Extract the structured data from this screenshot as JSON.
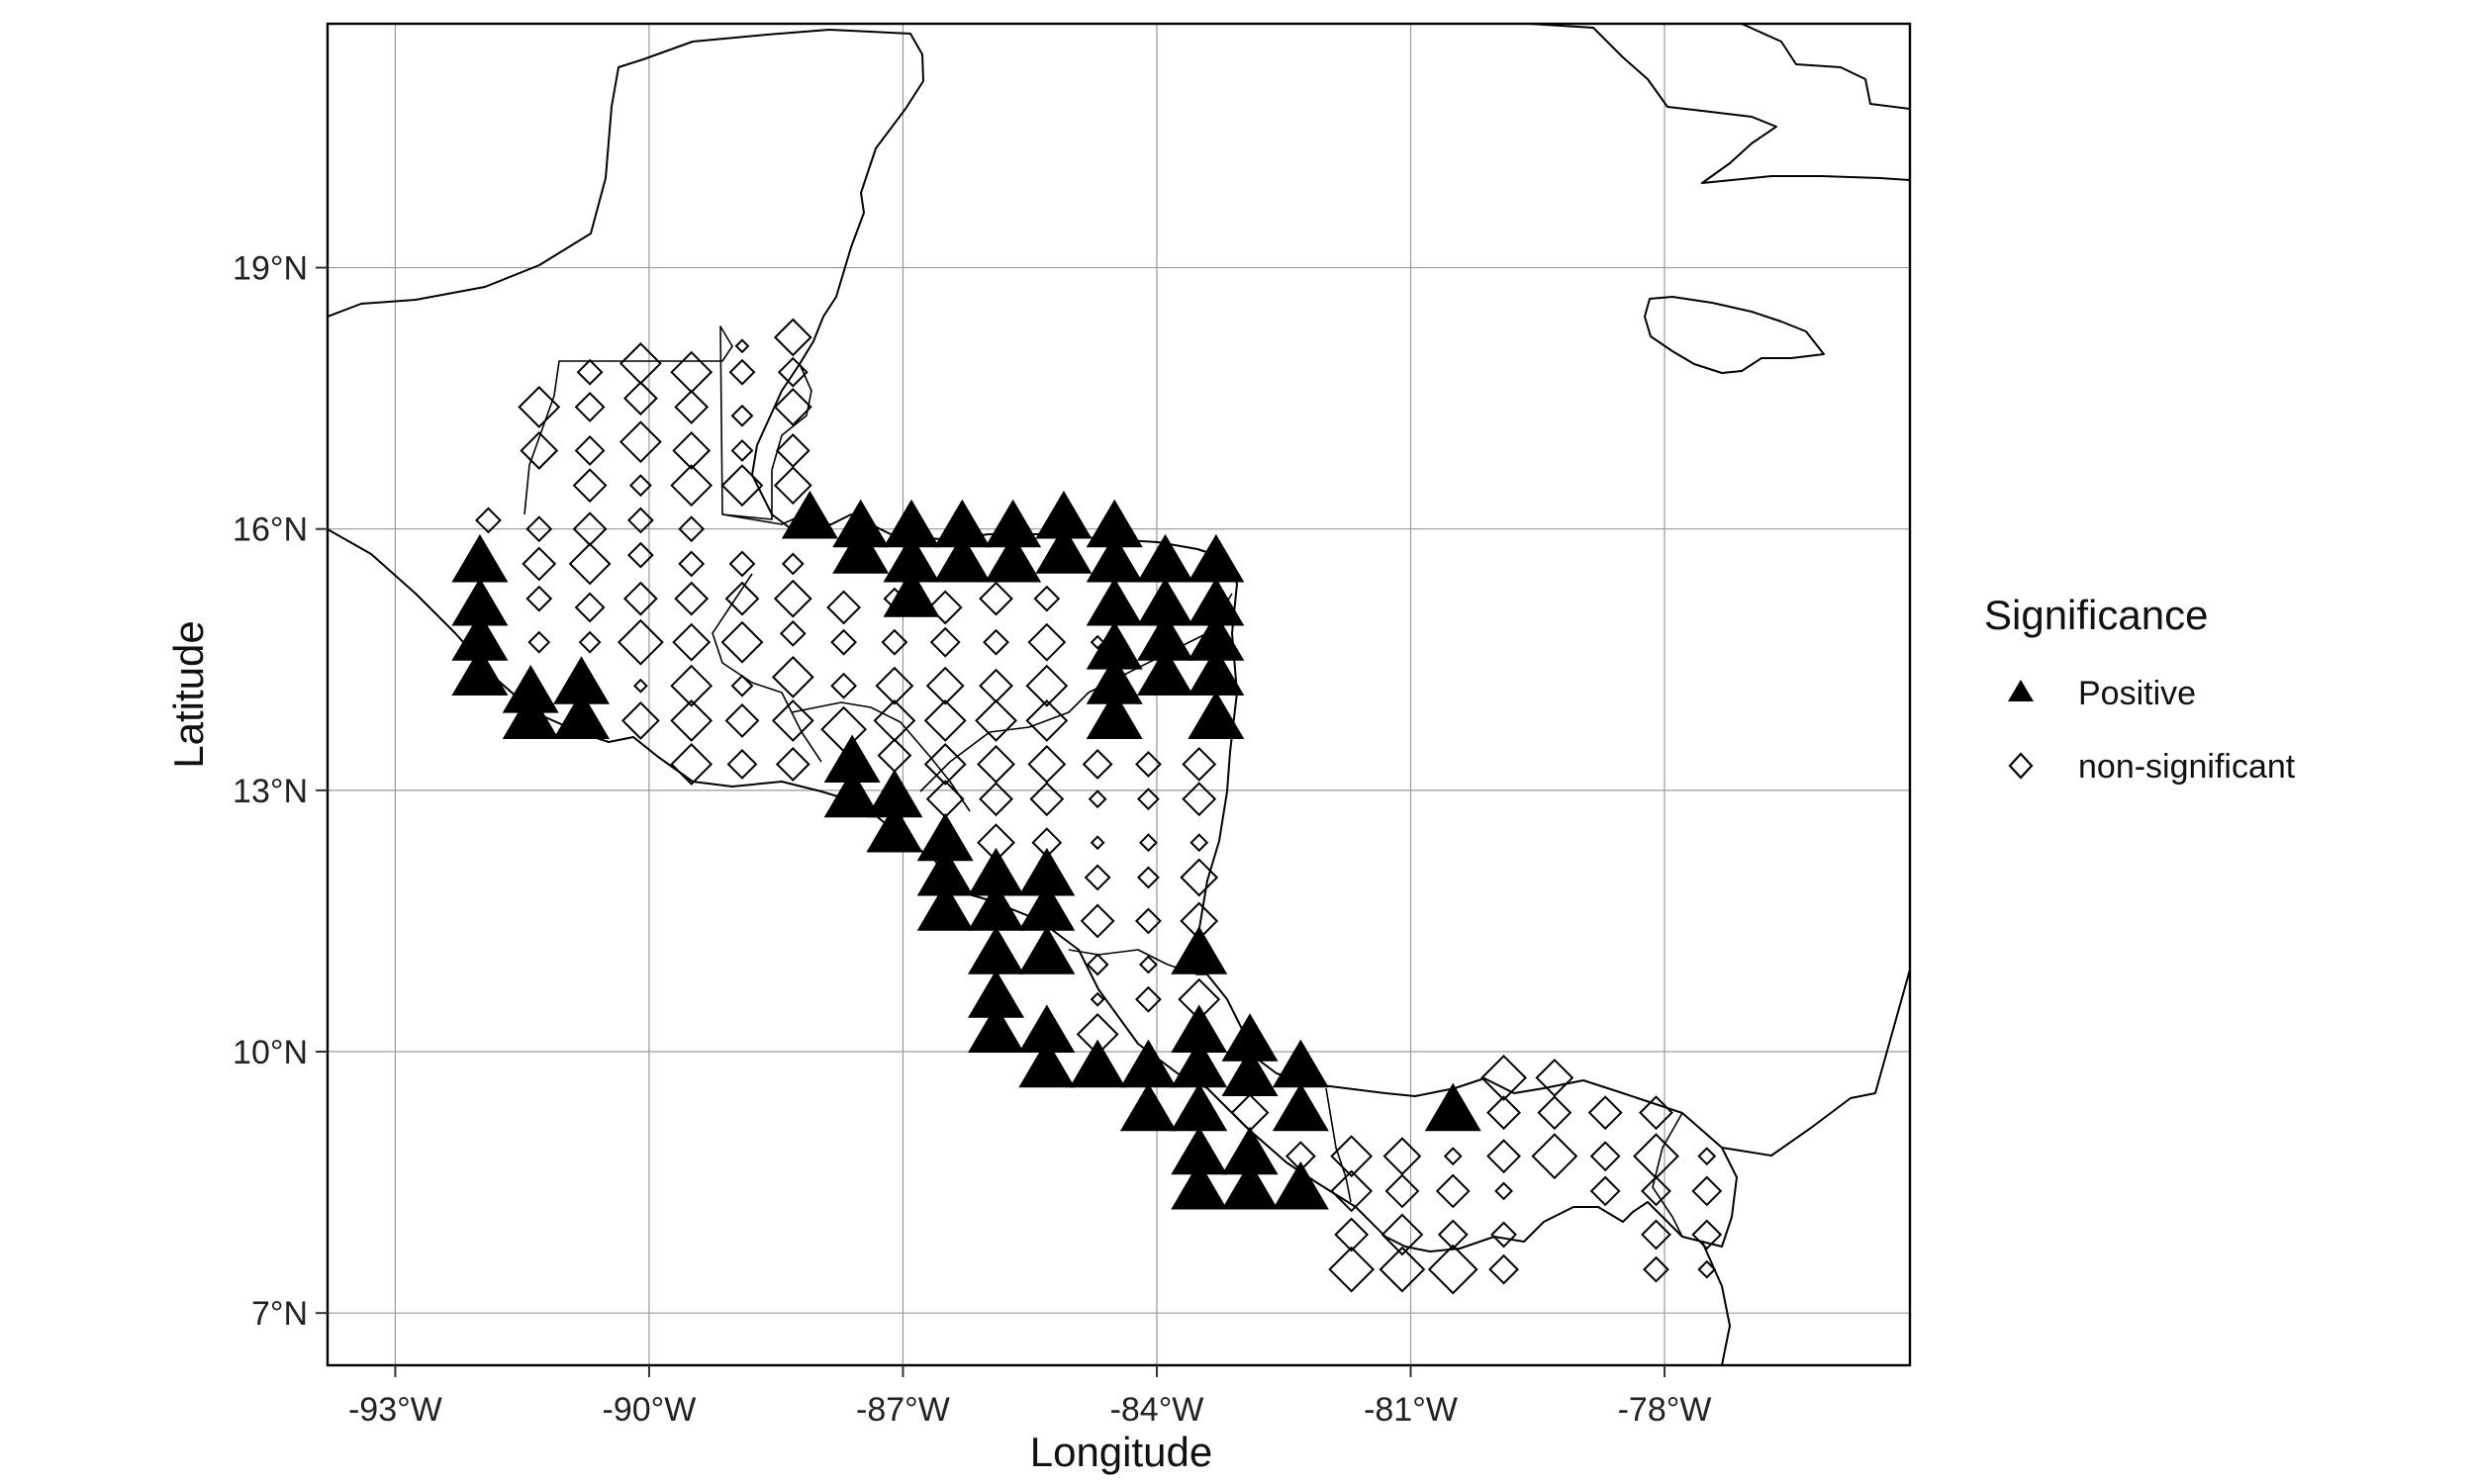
{
  "chart_data": {
    "type": "map",
    "axes": {
      "x_title": "Longitude",
      "y_title": "Latitude",
      "xlim": [
        -93.8,
        -75.1
      ],
      "ylim": [
        6.4,
        21.8
      ],
      "x_ticks": [
        {
          "value": -93,
          "label": "-93°W"
        },
        {
          "value": -90,
          "label": "-90°W"
        },
        {
          "value": -87,
          "label": "-87°W"
        },
        {
          "value": -84,
          "label": "-84°W"
        },
        {
          "value": -81,
          "label": "-81°W"
        },
        {
          "value": -78,
          "label": "-78°W"
        }
      ],
      "y_ticks": [
        {
          "value": 7,
          "label": "7°N"
        },
        {
          "value": 10,
          "label": "10°N"
        },
        {
          "value": 13,
          "label": "13°N"
        },
        {
          "value": 16,
          "label": "16°N"
        },
        {
          "value": 19,
          "label": "19°N"
        }
      ],
      "grid": true
    },
    "legend": {
      "title": "Significance",
      "placement": "right",
      "items": [
        {
          "label": "Positive",
          "shape": "triangle-filled"
        },
        {
          "label": "non-significant",
          "shape": "diamond-open"
        }
      ]
    },
    "colors": {
      "marker": "#000000",
      "grid": "#9a9a9a",
      "background": "#ffffff"
    },
    "series": [
      {
        "name": "Positive",
        "shape": "triangle-filled",
        "points": [
          [
            -92,
            15.6
          ],
          [
            -92,
            15.1
          ],
          [
            -92,
            14.7
          ],
          [
            -92,
            14.3
          ],
          [
            -91.4,
            14.1
          ],
          [
            -91.4,
            13.8
          ],
          [
            -90.8,
            14.2
          ],
          [
            -90.8,
            13.8
          ],
          [
            -88.1,
            16.1
          ],
          [
            -87.5,
            16
          ],
          [
            -87.5,
            15.7
          ],
          [
            -86.9,
            16
          ],
          [
            -86.9,
            15.6
          ],
          [
            -86.9,
            15.2
          ],
          [
            -86.3,
            16
          ],
          [
            -86.3,
            15.6
          ],
          [
            -85.7,
            16
          ],
          [
            -85.7,
            15.6
          ],
          [
            -85.1,
            16.1
          ],
          [
            -85.1,
            15.7
          ],
          [
            -84.5,
            16
          ],
          [
            -84.5,
            15.6
          ],
          [
            -84.5,
            15.1
          ],
          [
            -84.5,
            14.6
          ],
          [
            -84.5,
            14.2
          ],
          [
            -84.5,
            13.8
          ],
          [
            -83.9,
            15.6
          ],
          [
            -83.9,
            15.1
          ],
          [
            -83.9,
            14.7
          ],
          [
            -83.9,
            14.3
          ],
          [
            -83.3,
            15.6
          ],
          [
            -83.3,
            15.1
          ],
          [
            -83.3,
            14.7
          ],
          [
            -83.3,
            14.3
          ],
          [
            -83.3,
            13.8
          ],
          [
            -87.6,
            13.3
          ],
          [
            -87.6,
            12.9
          ],
          [
            -87.1,
            12.9
          ],
          [
            -87.1,
            12.5
          ],
          [
            -86.5,
            12.4
          ],
          [
            -86.5,
            12
          ],
          [
            -86.5,
            11.6
          ],
          [
            -85.9,
            12
          ],
          [
            -85.9,
            11.6
          ],
          [
            -85.9,
            11.1
          ],
          [
            -85.9,
            10.6
          ],
          [
            -85.9,
            10.2
          ],
          [
            -85.3,
            12
          ],
          [
            -85.3,
            11.6
          ],
          [
            -85.3,
            11.1
          ],
          [
            -85.3,
            10.2
          ],
          [
            -85.3,
            9.8
          ],
          [
            -84.7,
            9.8
          ],
          [
            -84.1,
            9.8
          ],
          [
            -84.1,
            9.3
          ],
          [
            -83.5,
            11.1
          ],
          [
            -83.5,
            10.2
          ],
          [
            -83.5,
            9.8
          ],
          [
            -83.5,
            9.3
          ],
          [
            -83.5,
            8.8
          ],
          [
            -83.5,
            8.4
          ],
          [
            -82.9,
            10.1
          ],
          [
            -82.9,
            9.7
          ],
          [
            -82.9,
            8.8
          ],
          [
            -82.9,
            8.4
          ],
          [
            -82.3,
            9.8
          ],
          [
            -82.3,
            9.3
          ],
          [
            -82.3,
            8.4
          ],
          [
            -80.5,
            9.3
          ]
        ]
      },
      {
        "name": "non-significant",
        "shape": "diamond-open",
        "points": [
          [
            -91.3,
            17.4,
            1
          ],
          [
            -91.3,
            16.9,
            0.9
          ],
          [
            -90.7,
            17.8,
            0.6
          ],
          [
            -90.7,
            17.4,
            0.7
          ],
          [
            -90.7,
            16.9,
            0.7
          ],
          [
            -90.7,
            16.5,
            0.8
          ],
          [
            -90.1,
            17.9,
            1
          ],
          [
            -90.1,
            17.5,
            0.8
          ],
          [
            -90.1,
            17,
            1
          ],
          [
            -90.1,
            16.5,
            0.5
          ],
          [
            -89.5,
            17.8,
            1
          ],
          [
            -89.5,
            17.4,
            0.8
          ],
          [
            -89.5,
            16.9,
            0.9
          ],
          [
            -89.5,
            16.5,
            1
          ],
          [
            -88.9,
            18.1,
            0.3
          ],
          [
            -88.9,
            17.8,
            0.6
          ],
          [
            -88.9,
            17.3,
            0.5
          ],
          [
            -88.9,
            16.9,
            0.5
          ],
          [
            -88.9,
            16.5,
            1
          ],
          [
            -88.3,
            18.2,
            0.9
          ],
          [
            -88.3,
            17.8,
            0.7
          ],
          [
            -88.3,
            17.4,
            0.9
          ],
          [
            -88.3,
            16.9,
            0.8
          ],
          [
            -88.3,
            16.5,
            0.9
          ],
          [
            -91.9,
            16.1,
            0.6
          ],
          [
            -91.3,
            16,
            0.6
          ],
          [
            -91.3,
            15.6,
            0.8
          ],
          [
            -91.3,
            15.2,
            0.6
          ],
          [
            -91.3,
            14.7,
            0.5
          ],
          [
            -90.7,
            16,
            0.8
          ],
          [
            -90.7,
            15.6,
            1
          ],
          [
            -90.7,
            15.1,
            0.7
          ],
          [
            -90.7,
            14.7,
            0.5
          ],
          [
            -90.1,
            16.1,
            0.6
          ],
          [
            -90.1,
            15.7,
            0.6
          ],
          [
            -90.1,
            15.2,
            0.8
          ],
          [
            -90.1,
            14.7,
            1.1
          ],
          [
            -90.1,
            14.2,
            0.3
          ],
          [
            -90.1,
            13.8,
            0.9
          ],
          [
            -89.5,
            16,
            0.6
          ],
          [
            -89.5,
            15.6,
            0.6
          ],
          [
            -89.5,
            15.2,
            0.8
          ],
          [
            -89.5,
            14.7,
            0.9
          ],
          [
            -89.5,
            14.2,
            1
          ],
          [
            -89.5,
            13.8,
            1
          ],
          [
            -89.5,
            13.3,
            1
          ],
          [
            -88.9,
            15.6,
            0.6
          ],
          [
            -88.9,
            15.2,
            0.8
          ],
          [
            -88.9,
            14.7,
            1
          ],
          [
            -88.9,
            14.2,
            0.5
          ],
          [
            -88.9,
            13.8,
            0.8
          ],
          [
            -88.9,
            13.3,
            0.7
          ],
          [
            -88.3,
            15.6,
            0.5
          ],
          [
            -88.3,
            15.2,
            0.9
          ],
          [
            -88.3,
            14.8,
            0.6
          ],
          [
            -88.3,
            14.3,
            1
          ],
          [
            -88.3,
            13.8,
            1
          ],
          [
            -88.3,
            13.3,
            0.8
          ],
          [
            -87.7,
            15.1,
            0.8
          ],
          [
            -87.7,
            14.7,
            0.6
          ],
          [
            -87.7,
            14.2,
            0.6
          ],
          [
            -87.7,
            13.7,
            1.1
          ],
          [
            -87.1,
            14.7,
            0.6
          ],
          [
            -87.1,
            14.2,
            0.9
          ],
          [
            -87.1,
            13.8,
            1
          ],
          [
            -87.1,
            13.4,
            0.8
          ],
          [
            -86.5,
            15.1,
            0.8
          ],
          [
            -86.5,
            14.7,
            0.7
          ],
          [
            -86.5,
            14.2,
            0.9
          ],
          [
            -86.5,
            13.8,
            1
          ],
          [
            -86.5,
            13.3,
            1
          ],
          [
            -86.5,
            12.9,
            0.9
          ],
          [
            -85.9,
            15.2,
            0.8
          ],
          [
            -85.9,
            14.7,
            0.6
          ],
          [
            -85.9,
            14.2,
            0.8
          ],
          [
            -85.9,
            13.8,
            1
          ],
          [
            -85.9,
            13.3,
            0.9
          ],
          [
            -85.9,
            12.9,
            0.8
          ],
          [
            -85.9,
            12.4,
            0.9
          ],
          [
            -85.3,
            14.7,
            0.9
          ],
          [
            -85.3,
            14.2,
            1
          ],
          [
            -85.3,
            13.8,
            1
          ],
          [
            -85.3,
            13.3,
            0.9
          ],
          [
            -85.3,
            12.9,
            0.8
          ],
          [
            -85.3,
            12.4,
            0.7
          ],
          [
            -84.7,
            13.3,
            0.7
          ],
          [
            -84.7,
            12.9,
            0.4
          ],
          [
            -84.7,
            12.4,
            0.3
          ],
          [
            -84.7,
            12,
            0.6
          ],
          [
            -84.7,
            11.5,
            0.8
          ],
          [
            -84.7,
            11,
            0.5
          ],
          [
            -84.7,
            10.6,
            0.3
          ],
          [
            -84.7,
            10.2,
            1
          ],
          [
            -84.1,
            13.3,
            0.6
          ],
          [
            -84.1,
            12.9,
            0.5
          ],
          [
            -84.1,
            12.4,
            0.4
          ],
          [
            -84.1,
            12,
            0.5
          ],
          [
            -84.1,
            11.5,
            0.6
          ],
          [
            -84.1,
            11,
            0.4
          ],
          [
            -84.1,
            10.6,
            0.6
          ],
          [
            -83.5,
            13.3,
            0.8
          ],
          [
            -83.5,
            12.9,
            0.8
          ],
          [
            -83.5,
            12.4,
            0.4
          ],
          [
            -83.5,
            12,
            0.9
          ],
          [
            -83.5,
            11.5,
            0.9
          ],
          [
            -83.5,
            10.6,
            1
          ],
          [
            -82.9,
            9.3,
            0.9
          ],
          [
            -82.3,
            8.8,
            0.7
          ],
          [
            -81.7,
            8.8,
            1
          ],
          [
            -81.7,
            8.4,
            1
          ],
          [
            -81.7,
            7.9,
            0.8
          ],
          [
            -81.7,
            7.5,
            1.1
          ],
          [
            -81.1,
            8.8,
            0.9
          ],
          [
            -81.1,
            8.4,
            0.8
          ],
          [
            -81.1,
            7.9,
            1
          ],
          [
            -81.1,
            7.5,
            1.1
          ],
          [
            -80.5,
            8.4,
            0.8
          ],
          [
            -80.5,
            7.9,
            0.7
          ],
          [
            -80.5,
            7.5,
            1.2
          ],
          [
            -80.5,
            8.8,
            0.4
          ],
          [
            -79.9,
            9.7,
            1.1
          ],
          [
            -79.9,
            9.3,
            0.8
          ],
          [
            -79.9,
            8.8,
            0.8
          ],
          [
            -79.9,
            8.4,
            0.4
          ],
          [
            -79.9,
            7.9,
            0.6
          ],
          [
            -79.9,
            7.5,
            0.7
          ],
          [
            -79.3,
            9.7,
            0.9
          ],
          [
            -79.3,
            9.3,
            0.8
          ],
          [
            -79.3,
            8.8,
            1.1
          ],
          [
            -78.7,
            9.3,
            0.8
          ],
          [
            -78.7,
            8.8,
            0.7
          ],
          [
            -78.7,
            8.4,
            0.7
          ],
          [
            -78.1,
            9.3,
            0.8
          ],
          [
            -78.1,
            8.8,
            1.1
          ],
          [
            -78.1,
            8.4,
            0.7
          ],
          [
            -78.1,
            7.9,
            0.7
          ],
          [
            -78.1,
            7.5,
            0.6
          ],
          [
            -77.5,
            8.8,
            0.4
          ],
          [
            -77.5,
            8.4,
            0.7
          ],
          [
            -77.5,
            7.9,
            0.7
          ],
          [
            -77.5,
            7.5,
            0.4
          ],
          [
            -84.7,
            14.7,
            0.3
          ],
          [
            -85.3,
            15.2,
            0.6
          ],
          [
            -87.1,
            15.2,
            0.5
          ]
        ]
      }
    ]
  }
}
